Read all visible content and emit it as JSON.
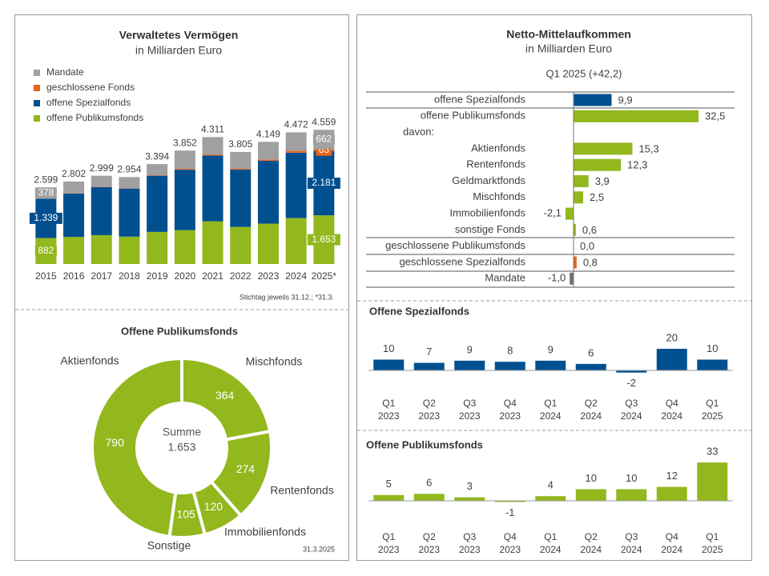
{
  "chart_data": [
    {
      "type": "stacked-bar",
      "title": "Verwaltetes Vermögen",
      "subtitle": "in Milliarden Euro",
      "categories": [
        "2015",
        "2016",
        "2017",
        "2018",
        "2019",
        "2020",
        "2021",
        "2022",
        "2023",
        "2024",
        "2025*"
      ],
      "series": [
        {
          "name": "offene Publikumsfonds",
          "color": "#92b81d",
          "values": [
            882,
            920,
            980,
            930,
            1090,
            1150,
            1450,
            1260,
            1370,
            1560,
            1653
          ],
          "value_labels": [
            "882",
            null,
            null,
            null,
            null,
            null,
            null,
            null,
            null,
            null,
            "1.653"
          ]
        },
        {
          "name": "offene Spezialfonds",
          "color": "#00508f",
          "values": [
            1339,
            1470,
            1629,
            1634,
            1909,
            2052,
            2231,
            1945,
            2139,
            2222,
            2181
          ],
          "value_labels": [
            "1.339",
            null,
            null,
            null,
            null,
            null,
            null,
            null,
            null,
            null,
            "2.181"
          ]
        },
        {
          "name": "geschlossene Fonds",
          "color": "#e8641a",
          "values": [
            0,
            10,
            10,
            10,
            15,
            30,
            30,
            30,
            40,
            60,
            63
          ],
          "value_labels": [
            null,
            null,
            null,
            null,
            null,
            null,
            null,
            null,
            null,
            null,
            "63"
          ]
        },
        {
          "name": "Mandate",
          "color": "#a0a0a0",
          "values": [
            378,
            402,
            380,
            380,
            380,
            620,
            600,
            570,
            600,
            630,
            662
          ],
          "value_labels": [
            "378",
            null,
            null,
            null,
            null,
            null,
            null,
            null,
            null,
            null,
            "662"
          ]
        }
      ],
      "totals": {
        "values": [
          2599,
          2802,
          2999,
          2954,
          3394,
          3852,
          4311,
          3805,
          4149,
          4472,
          4559
        ],
        "value_labels": [
          "2.599",
          "2.802",
          "2.999",
          "2.954",
          "3.394",
          "3.852",
          "4.311",
          "3.805",
          "4.149",
          "4.472",
          "4.559"
        ]
      },
      "note": "Stichtag jeweils 31.12.; *31.3."
    },
    {
      "type": "donut",
      "title": "Offene Publikumsfonds",
      "color": "#92b81d",
      "categories": [
        "Mischfonds",
        "Rentenfonds",
        "Immobilienfonds",
        "Sonstige",
        "Aktienfonds"
      ],
      "values": [
        364,
        274,
        120,
        105,
        790
      ],
      "total_title": "Summe",
      "total": {
        "value": 1653,
        "label": "1.653"
      },
      "note": "31.3.2025"
    },
    {
      "type": "hbar",
      "title": "Netto-Mittelaufkommen",
      "subtitle": "in Milliarden Euro",
      "period": "Q1 2025 (+42,2)",
      "categories": [
        "offene Spezialfonds",
        "offene Publikumsfonds",
        "davon:",
        "Aktienfonds",
        "Rentenfonds",
        "Geldmarktfonds",
        "Mischfonds",
        "Immobilienfonds",
        "sonstige Fonds",
        "geschlossene Publikumsfonds",
        "geschlossene Spezialfonds",
        "Mandate"
      ],
      "values": [
        9.9,
        32.5,
        null,
        15.3,
        12.3,
        3.9,
        2.5,
        -2.1,
        0.6,
        0,
        0.8,
        -1.0
      ],
      "value_labels": [
        "9,9",
        "32,5",
        null,
        "15,3",
        "12,3",
        "3,9",
        "2,5",
        "-2,1",
        "0,6",
        "0,0",
        "0,8",
        "-1,0"
      ],
      "colors": [
        "#00508f",
        "#92b81d",
        null,
        "#92b81d",
        "#92b81d",
        "#92b81d",
        "#92b81d",
        "#92b81d",
        "#92b81d",
        "#92b81d",
        "#e8641a",
        "#707070"
      ]
    },
    {
      "type": "bar",
      "title": "Offene Spezialfonds",
      "color": "#00508f",
      "categories": [
        [
          "Q1",
          "2023"
        ],
        [
          "Q2",
          "2023"
        ],
        [
          "Q3",
          "2023"
        ],
        [
          "Q4",
          "2023"
        ],
        [
          "Q1",
          "2024"
        ],
        [
          "Q2",
          "2024"
        ],
        [
          "Q3",
          "2024"
        ],
        [
          "Q4",
          "2024"
        ],
        [
          "Q1",
          "2025"
        ]
      ],
      "values": [
        10,
        7,
        9,
        8,
        9,
        6,
        -2,
        20,
        10
      ]
    },
    {
      "type": "bar",
      "title": "Offene Publikumsfonds",
      "color": "#92b81d",
      "categories": [
        [
          "Q1",
          "2023"
        ],
        [
          "Q2",
          "2023"
        ],
        [
          "Q3",
          "2023"
        ],
        [
          "Q4",
          "2023"
        ],
        [
          "Q1",
          "2024"
        ],
        [
          "Q2",
          "2024"
        ],
        [
          "Q3",
          "2024"
        ],
        [
          "Q4",
          "2024"
        ],
        [
          "Q1",
          "2025"
        ]
      ],
      "values": [
        5,
        6,
        3,
        -1,
        4,
        10,
        10,
        12,
        33
      ]
    }
  ]
}
